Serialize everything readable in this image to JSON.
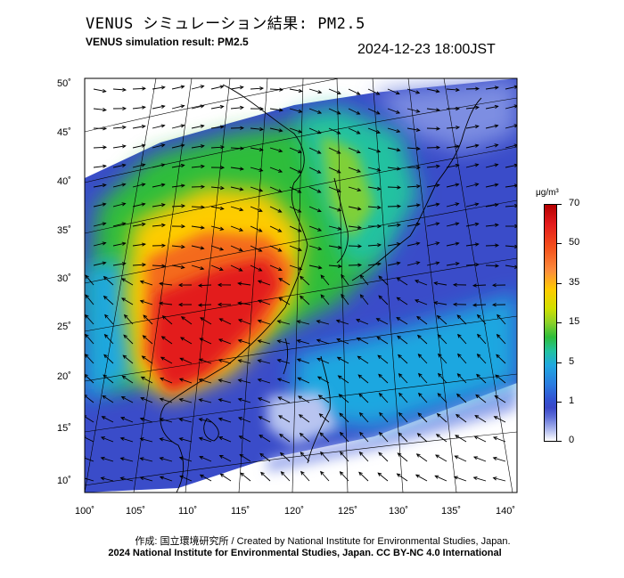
{
  "header": {
    "title_jp": "VENUS シミュレーション結果: PM2.5",
    "title_en": "VENUS simulation result: PM2.5",
    "datetime": "2024-12-23 18:00JST"
  },
  "map": {
    "lon_ticks": [
      "100˚",
      "105˚",
      "110˚",
      "115˚",
      "120˚",
      "125˚",
      "130˚",
      "135˚",
      "140˚"
    ],
    "lat_ticks": [
      "50˚",
      "45˚",
      "40˚",
      "35˚",
      "30˚",
      "25˚",
      "20˚",
      "15˚",
      "10˚"
    ],
    "colors": {
      "ocean_low": "#3a4cc9",
      "land_high": "#e33a1a",
      "medium": "#2ebd3a",
      "no_data": "#ffffff"
    }
  },
  "colorbar": {
    "unit": "μg/m³",
    "labels": [
      "70",
      "50",
      "35",
      "15",
      "5",
      "1",
      "0"
    ]
  },
  "credits": {
    "line1": "作成: 国立環境研究所 / Created by National Institute for Environmental Studies, Japan.",
    "line2": "2024 National Institute for Environmental Studies, Japan. CC BY-NC 4.0 International"
  }
}
